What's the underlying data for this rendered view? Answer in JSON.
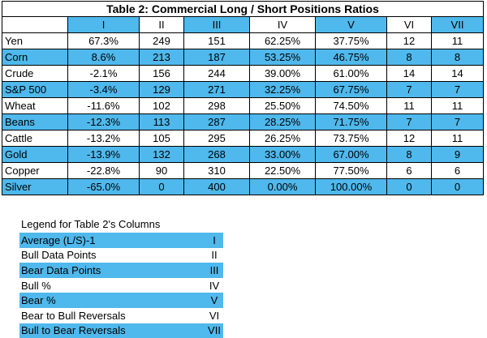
{
  "table": {
    "title": "Table 2:  Commercial Long / Short Positions Ratios",
    "header": [
      "",
      "I",
      "II",
      "III",
      "IV",
      "V",
      "VI",
      "VII"
    ],
    "highlight_color": "#4fb8ec",
    "rows": [
      {
        "label": "Yen",
        "values": [
          "67.3%",
          "249",
          "151",
          "62.25%",
          "37.75%",
          "12",
          "11"
        ]
      },
      {
        "label": "Corn",
        "values": [
          "8.6%",
          "213",
          "187",
          "53.25%",
          "46.75%",
          "8",
          "8"
        ]
      },
      {
        "label": "Crude",
        "values": [
          "-2.1%",
          "156",
          "244",
          "39.00%",
          "61.00%",
          "14",
          "14"
        ]
      },
      {
        "label": "S&P 500",
        "values": [
          "-3.4%",
          "129",
          "271",
          "32.25%",
          "67.75%",
          "7",
          "7"
        ]
      },
      {
        "label": "Wheat",
        "values": [
          "-11.6%",
          "102",
          "298",
          "25.50%",
          "74.50%",
          "11",
          "11"
        ]
      },
      {
        "label": "Beans",
        "values": [
          "-12.3%",
          "113",
          "287",
          "28.25%",
          "71.75%",
          "7",
          "7"
        ]
      },
      {
        "label": "Cattle",
        "values": [
          "-13.2%",
          "105",
          "295",
          "26.25%",
          "73.75%",
          "12",
          "11"
        ]
      },
      {
        "label": "Gold",
        "values": [
          "-13.9%",
          "132",
          "268",
          "33.00%",
          "67.00%",
          "8",
          "9"
        ]
      },
      {
        "label": "Copper",
        "values": [
          "-22.8%",
          "90",
          "310",
          "22.50%",
          "77.50%",
          "6",
          "6"
        ]
      },
      {
        "label": "Silver",
        "values": [
          "-65.0%",
          "0",
          "400",
          "0.00%",
          "100.00%",
          "0",
          "0"
        ]
      }
    ]
  },
  "legend": {
    "title": "Legend for Table 2's Columns",
    "items": [
      {
        "label": "Average (L/S)-1",
        "code": "I"
      },
      {
        "label": "Bull Data Points",
        "code": "II"
      },
      {
        "label": "Bear Data Points",
        "code": "III"
      },
      {
        "label": "Bull %",
        "code": "IV"
      },
      {
        "label": "Bear %",
        "code": "V"
      },
      {
        "label": "Bear to Bull Reversals",
        "code": "VI"
      },
      {
        "label": "Bull to Bear Reversals",
        "code": "VII"
      }
    ]
  }
}
